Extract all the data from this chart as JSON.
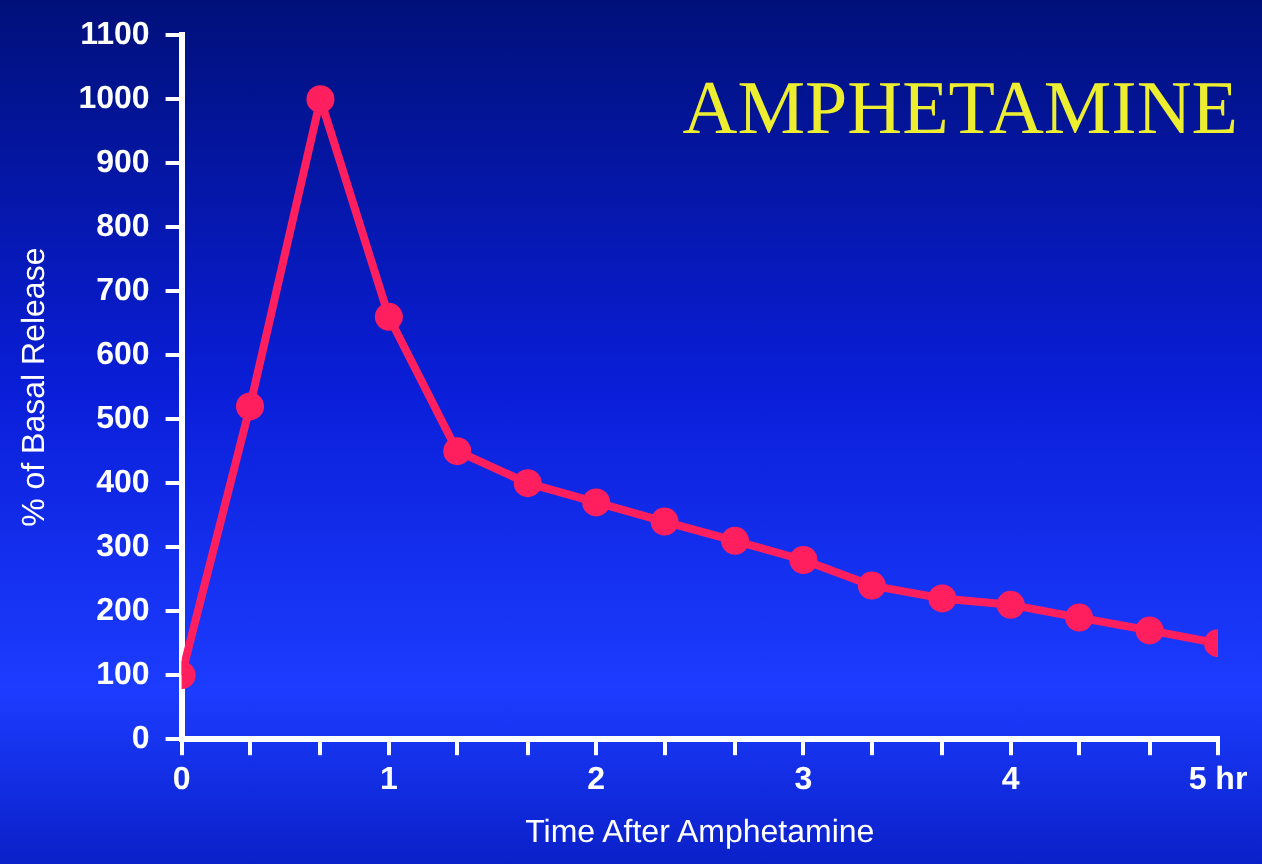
{
  "chart_data": {
    "type": "line",
    "title": "AMPHETAMINE",
    "xlabel": "Time After Amphetamine",
    "ylabel": "% of Basal Release",
    "x": [
      0,
      0.33,
      0.67,
      1,
      1.33,
      1.67,
      2,
      2.33,
      2.67,
      3,
      3.33,
      3.67,
      4,
      4.33,
      4.67,
      5
    ],
    "series": [
      {
        "color": "#ff1f5e",
        "values": [
          100,
          520,
          1000,
          660,
          450,
          400,
          370,
          340,
          310,
          280,
          240,
          220,
          210,
          190,
          170,
          150
        ]
      }
    ],
    "xlim": [
      0,
      5
    ],
    "ylim": [
      0,
      1100
    ],
    "xticks": [
      0,
      {
        "value": 0.33,
        "label": null
      },
      {
        "value": 0.67,
        "label": null
      },
      1,
      {
        "value": 1.33,
        "label": null
      },
      {
        "value": 1.67,
        "label": null
      },
      2,
      {
        "value": 2.33,
        "label": null
      },
      {
        "value": 2.67,
        "label": null
      },
      3,
      {
        "value": 3.33,
        "label": null
      },
      {
        "value": 3.67,
        "label": null
      },
      4,
      {
        "value": 4.33,
        "label": null
      },
      {
        "value": 4.67,
        "label": null
      },
      {
        "value": 5,
        "label": "5 hr"
      }
    ],
    "yticks": [
      0,
      100,
      200,
      300,
      400,
      500,
      600,
      700,
      800,
      900,
      1000,
      1100
    ],
    "grid": false,
    "legend": false,
    "marker": "circle",
    "line_style": "solid"
  }
}
